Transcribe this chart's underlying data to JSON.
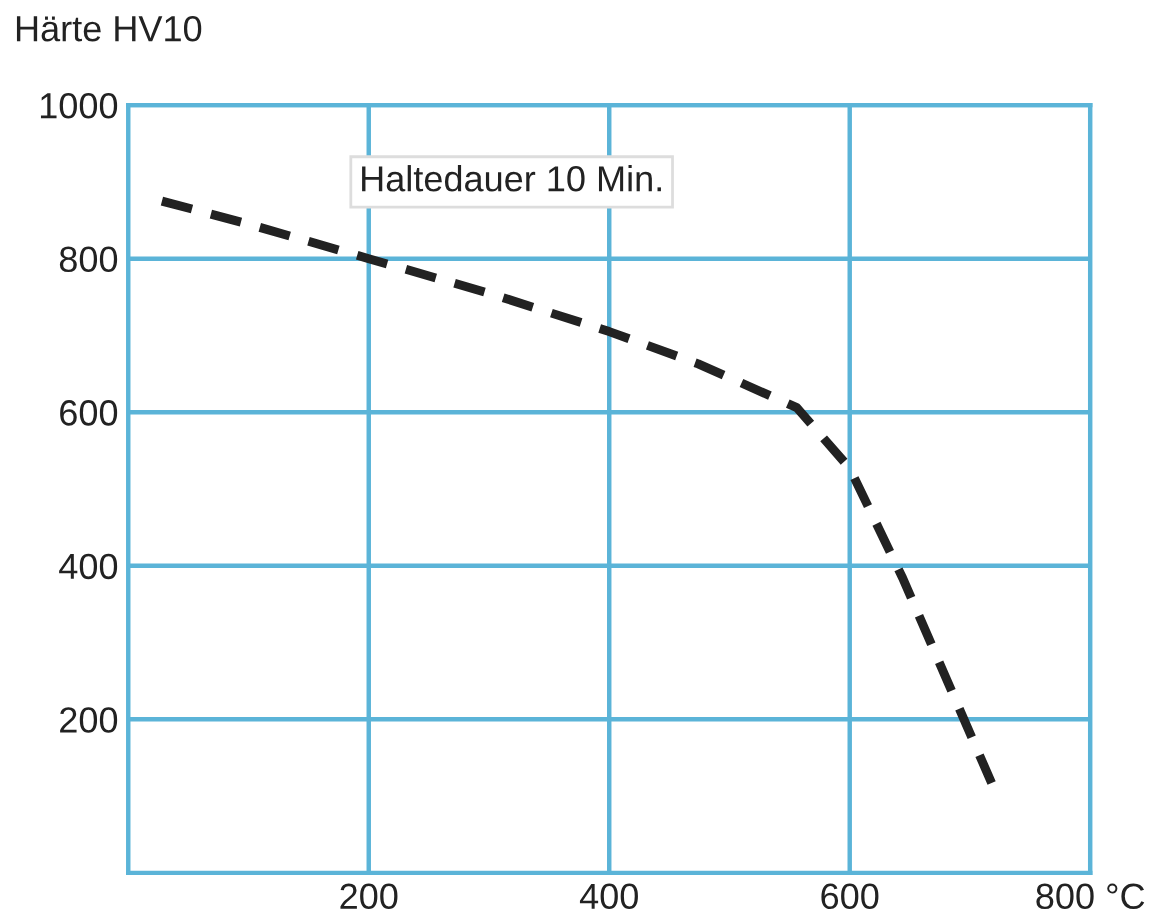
{
  "chart_data": {
    "type": "line",
    "ylabel": "Härte HV10",
    "x": [
      28,
      100,
      200,
      300,
      400,
      474,
      556,
      600,
      644,
      718
    ],
    "series": [
      {
        "color": "#222222",
        "values": [
          875,
          845,
          800,
          755,
          705,
          663,
          606,
          527,
          384,
          117
        ]
      }
    ],
    "xlim": [
      0,
      800
    ],
    "ylim": [
      0,
      1000
    ],
    "xticks": [
      200,
      400,
      600,
      {
        "value": 800,
        "label": "800 °C"
      }
    ],
    "yticks": [
      200,
      400,
      600,
      800,
      1000
    ],
    "grid": true,
    "line_style": "dashed",
    "marker": "none",
    "annotations": [
      "Haltedauer 10 Min."
    ]
  }
}
